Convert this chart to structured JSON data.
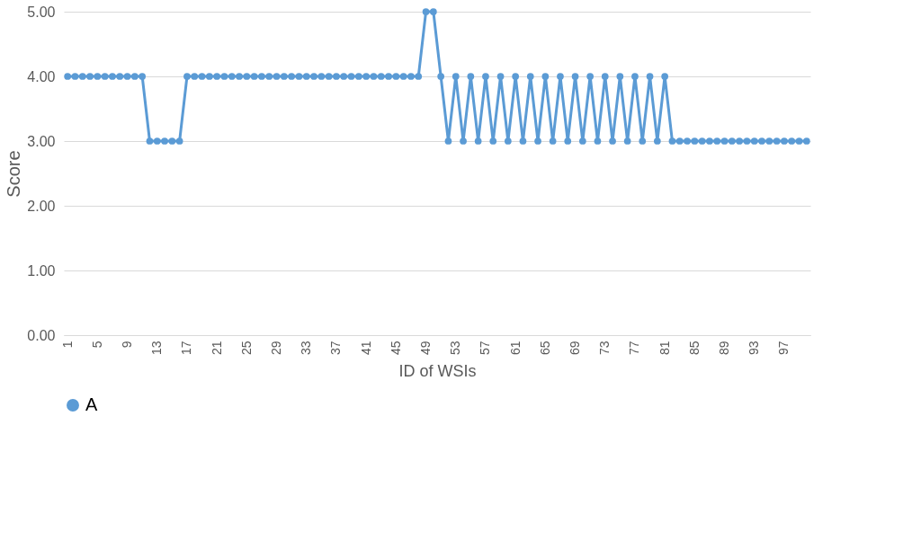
{
  "chart_data": {
    "type": "line",
    "xlabel": "ID of WSIs",
    "ylabel": "Score",
    "categories": [
      "1",
      null,
      null,
      null,
      "5",
      null,
      null,
      null,
      "9",
      null,
      null,
      null,
      "13",
      null,
      null,
      null,
      "17",
      null,
      null,
      null,
      "21",
      null,
      null,
      null,
      "25",
      null,
      null,
      null,
      "29",
      null,
      null,
      null,
      "33",
      null,
      null,
      null,
      "37",
      null,
      null,
      null,
      "41",
      null,
      null,
      null,
      "45",
      null,
      null,
      null,
      "49",
      null,
      null,
      null,
      "53",
      null,
      null,
      null,
      "57",
      null,
      null,
      null,
      "61",
      null,
      null,
      null,
      "65",
      null,
      null,
      null,
      "69",
      null,
      null,
      null,
      "73",
      null,
      null,
      null,
      "77",
      null,
      null,
      null,
      "81",
      null,
      null,
      null,
      "85",
      null,
      null,
      null,
      "89",
      null,
      null,
      null,
      "93",
      null,
      null,
      null,
      "97",
      null,
      null,
      null
    ],
    "series": [
      {
        "name": "A",
        "color": "#5b9bd5",
        "values": [
          4,
          4,
          4,
          4,
          4,
          4,
          4,
          4,
          4,
          4,
          4,
          3,
          3,
          3,
          3,
          3,
          4,
          4,
          4,
          4,
          4,
          4,
          4,
          4,
          4,
          4,
          4,
          4,
          4,
          4,
          4,
          4,
          4,
          4,
          4,
          4,
          4,
          4,
          4,
          4,
          4,
          4,
          4,
          4,
          4,
          4,
          4,
          4,
          5,
          5,
          4,
          3,
          4,
          3,
          4,
          3,
          4,
          3,
          4,
          3,
          4,
          3,
          4,
          3,
          4,
          3,
          4,
          3,
          4,
          3,
          4,
          3,
          4,
          3,
          4,
          3,
          4,
          3,
          4,
          3,
          4,
          3,
          3,
          3,
          3,
          3,
          3,
          3,
          3,
          3,
          3,
          3,
          3,
          3,
          3,
          3,
          3,
          3,
          3,
          3
        ]
      }
    ],
    "ylim": [
      0,
      5
    ],
    "yticks": [
      {
        "value": 0,
        "label": "0.00"
      },
      {
        "value": 1,
        "label": "1.00"
      },
      {
        "value": 2,
        "label": "2.00"
      },
      {
        "value": 3,
        "label": "3.00"
      },
      {
        "value": 4,
        "label": "4.00"
      },
      {
        "value": 5,
        "label": "5.00"
      }
    ],
    "grid": "y",
    "legend": "bottom",
    "marker": "circle",
    "line_style": "solid"
  }
}
